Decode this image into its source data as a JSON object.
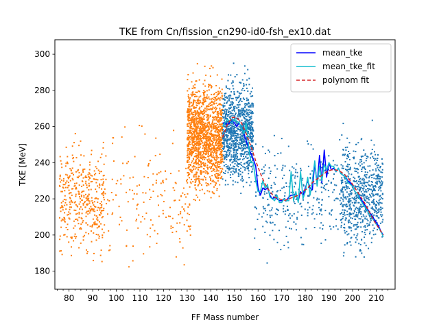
{
  "chart_data": {
    "type": "scatter",
    "title": "TKE from  Cn/fission_cn290-id0-fsh_ex10.dat",
    "xlabel": "FF Mass number",
    "ylabel": "TKE [MeV]",
    "xlim": [
      74,
      218
    ],
    "ylim": [
      170,
      308
    ],
    "xticks": [
      80,
      90,
      100,
      110,
      120,
      130,
      140,
      150,
      160,
      170,
      180,
      190,
      200,
      210
    ],
    "yticks": [
      180,
      200,
      220,
      240,
      260,
      280,
      300
    ],
    "grid": false,
    "legend_position": "top-right",
    "colors": {
      "light_fragments": "#ff7f0e",
      "heavy_fragments": "#1f77b4",
      "mean_tke": "#0000ff",
      "mean_tke_fit": "#17becf",
      "polynom_fit": "#d62728"
    },
    "scatter_clusters": [
      {
        "group": "light",
        "x_range": [
          76,
          95
        ],
        "y_center": 220,
        "y_spread": 16,
        "count": 420
      },
      {
        "group": "light",
        "x_range": [
          95,
          132
        ],
        "y_center": 218,
        "y_spread": 20,
        "count": 180
      },
      {
        "group": "light",
        "x_range": [
          130,
          145
        ],
        "y_center": 255,
        "y_spread": 16,
        "count": 1500
      },
      {
        "group": "heavy",
        "x_range": [
          145,
          158
        ],
        "y_center": 257,
        "y_spread": 15,
        "count": 1000
      },
      {
        "group": "heavy",
        "x_range": [
          158,
          195
        ],
        "y_center": 222,
        "y_spread": 16,
        "count": 300
      },
      {
        "group": "heavy",
        "x_range": [
          195,
          213
        ],
        "y_center": 222,
        "y_spread": 16,
        "count": 700
      }
    ],
    "series": [
      {
        "name": "mean_tke",
        "style": "solid",
        "x": [
          145,
          146,
          147,
          148,
          149,
          150,
          151,
          152,
          153,
          154,
          155,
          156,
          157,
          158,
          159,
          160,
          161,
          162,
          163,
          164,
          165,
          166,
          167,
          168,
          169,
          170,
          171,
          172,
          173,
          174,
          175,
          176,
          177,
          178,
          179,
          180,
          181,
          182,
          183,
          184,
          185,
          186,
          187,
          188,
          189,
          190,
          191,
          192,
          193,
          194,
          195,
          196,
          197,
          198,
          199,
          200,
          201,
          202,
          203,
          204,
          205,
          206,
          207,
          208,
          209,
          210,
          211,
          212,
          213
        ],
        "y": [
          262,
          262,
          261,
          262,
          263,
          262,
          260,
          262,
          259,
          256,
          252,
          248,
          245,
          242,
          238,
          226,
          222,
          226,
          225,
          226,
          222,
          220,
          221,
          220,
          219,
          219,
          220,
          219,
          221,
          222,
          222,
          223,
          219,
          224,
          222,
          226,
          230,
          226,
          225,
          240,
          228,
          244,
          229,
          247,
          232,
          240,
          236,
          237,
          235,
          237,
          234,
          233,
          232,
          230,
          229,
          227,
          224,
          223,
          221,
          219,
          217,
          215,
          213,
          211,
          209,
          207,
          205,
          202,
          200
        ]
      },
      {
        "name": "mean_tke_fit",
        "style": "solid",
        "x": [
          145,
          146,
          147,
          148,
          149,
          150,
          151,
          152,
          153,
          154,
          155,
          156,
          157,
          158,
          159,
          160,
          161,
          162,
          163,
          164,
          165,
          166,
          167,
          168,
          169,
          170,
          171,
          172,
          173,
          174,
          175,
          176,
          177,
          178,
          179,
          180,
          181,
          182,
          183,
          184,
          185,
          186,
          187,
          188,
          189,
          190,
          191,
          192,
          193,
          194,
          195,
          196,
          197,
          198,
          199,
          200,
          201,
          202,
          203,
          204,
          205,
          206,
          207,
          208,
          209,
          210,
          211,
          212,
          213
        ],
        "y": [
          260,
          262,
          264,
          263,
          262,
          264,
          263,
          262,
          259,
          256,
          262,
          249,
          240,
          240,
          230,
          224,
          224,
          230,
          226,
          228,
          221,
          220,
          219,
          222,
          218,
          218,
          220,
          219,
          219,
          235,
          219,
          224,
          218,
          235,
          220,
          224,
          232,
          222,
          230,
          241,
          227,
          238,
          230,
          239,
          236,
          240,
          238,
          238,
          235,
          237,
          234,
          233,
          232,
          229,
          228,
          227,
          224,
          223,
          220,
          218,
          216,
          214,
          212,
          210,
          208,
          206,
          204,
          202,
          199
        ]
      },
      {
        "name": "polynom fit",
        "style": "dashed",
        "x": [
          145,
          147,
          149,
          151,
          153,
          155,
          157,
          159,
          161,
          163,
          165,
          167,
          169,
          171,
          173,
          175,
          177,
          179,
          181,
          183,
          185,
          187,
          189,
          191,
          193,
          195,
          197,
          199,
          201,
          203,
          205,
          207,
          209,
          211,
          213
        ],
        "y": [
          254,
          261,
          265,
          265,
          262,
          256,
          249,
          241,
          234,
          228,
          224,
          221,
          220,
          219,
          220,
          221,
          222,
          224,
          226,
          229,
          231,
          233,
          235,
          236,
          236,
          235,
          233,
          230,
          226,
          222,
          218,
          213,
          208,
          204,
          200
        ]
      }
    ]
  }
}
